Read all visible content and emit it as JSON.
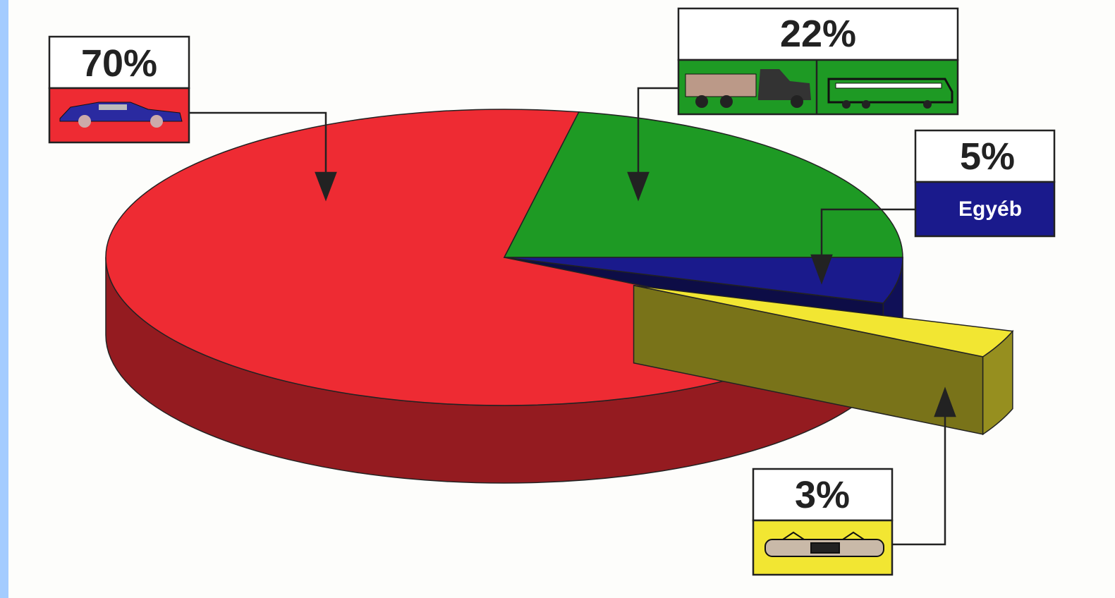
{
  "chart_data": {
    "type": "pie",
    "categories": [
      null,
      null,
      "Egyéb",
      null
    ],
    "values": [
      70,
      22,
      5,
      3
    ],
    "value_labels": [
      "70%",
      "22%",
      "5%",
      "3%"
    ],
    "colors": [
      "#ee2b33",
      "#1e9a24",
      "#1a1a8c",
      "#f2e632"
    ]
  }
}
